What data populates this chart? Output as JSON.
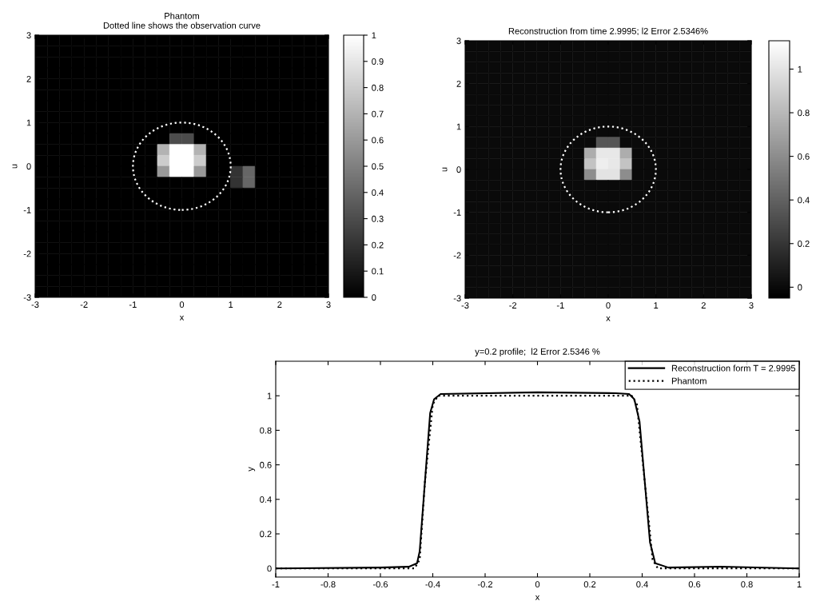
{
  "chart_data": [
    {
      "type": "heatmap",
      "title": "Phantom",
      "subtitle": "Dotted line shows the observation curve",
      "xlabel": "x",
      "ylabel": "u",
      "xlim": [
        -3,
        3
      ],
      "ylim": [
        -3,
        3
      ],
      "xticks": [
        -3,
        -2,
        -1,
        0,
        1,
        2,
        3
      ],
      "yticks": [
        -3,
        -2,
        -1,
        0,
        1,
        2,
        3
      ],
      "clim": [
        0,
        1
      ],
      "cticks": [
        0,
        0.1,
        0.2,
        0.3,
        0.4,
        0.5,
        0.6,
        0.7,
        0.8,
        0.9,
        1
      ],
      "cells": [
        [
          0,
          0,
          0,
          0,
          0,
          0,
          0,
          0,
          0,
          0,
          0,
          0,
          0,
          0,
          0,
          0,
          0,
          0,
          0,
          0,
          0,
          0,
          0,
          0
        ],
        [
          0,
          0,
          0,
          0,
          0,
          0,
          0,
          0,
          0,
          0,
          0,
          0,
          0,
          0,
          0,
          0,
          0,
          0,
          0,
          0,
          0,
          0,
          0,
          0
        ],
        [
          0,
          0,
          0,
          0,
          0,
          0,
          0,
          0,
          0,
          0,
          0,
          0,
          0,
          0,
          0,
          0,
          0,
          0,
          0,
          0,
          0,
          0,
          0,
          0
        ],
        [
          0,
          0,
          0,
          0,
          0,
          0,
          0,
          0,
          0,
          0,
          0,
          0,
          0,
          0,
          0,
          0,
          0,
          0,
          0,
          0,
          0,
          0,
          0,
          0
        ],
        [
          0,
          0,
          0,
          0,
          0,
          0,
          0,
          0,
          0,
          0,
          0,
          0,
          0,
          0,
          0,
          0,
          0,
          0,
          0,
          0,
          0,
          0,
          0,
          0
        ],
        [
          0,
          0,
          0,
          0,
          0,
          0,
          0,
          0,
          0,
          0,
          0,
          0,
          0,
          0,
          0,
          0,
          0,
          0,
          0,
          0,
          0,
          0,
          0,
          0
        ],
        [
          0,
          0,
          0,
          0,
          0,
          0,
          0,
          0,
          0,
          0,
          0,
          0,
          0,
          0,
          0,
          0,
          0,
          0,
          0,
          0,
          0,
          0,
          0,
          0
        ],
        [
          0,
          0,
          0,
          0,
          0,
          0,
          0,
          0,
          0,
          0,
          0,
          0,
          0,
          0,
          0,
          0,
          0,
          0,
          0,
          0,
          0,
          0,
          0,
          0
        ],
        [
          0,
          0,
          0,
          0,
          0,
          0,
          0,
          0,
          0,
          0,
          0,
          0,
          0,
          0,
          0,
          0,
          0,
          0,
          0,
          0,
          0,
          0,
          0,
          0
        ],
        [
          0,
          0,
          0,
          0,
          0,
          0,
          0,
          0,
          0,
          0,
          0,
          0.3,
          0.3,
          0,
          0,
          0,
          0,
          0,
          0,
          0,
          0,
          0,
          0,
          0
        ],
        [
          0,
          0,
          0,
          0,
          0,
          0,
          0,
          0,
          0,
          0,
          0.7,
          1,
          1,
          0.7,
          0,
          0,
          0,
          0,
          0,
          0,
          0,
          0,
          0,
          0
        ],
        [
          0,
          0,
          0,
          0,
          0,
          0,
          0,
          0,
          0,
          0,
          0.8,
          1,
          1,
          0.8,
          0,
          0,
          0,
          0,
          0,
          0,
          0,
          0,
          0,
          0
        ],
        [
          0,
          0,
          0,
          0,
          0,
          0,
          0,
          0,
          0,
          0,
          0.6,
          1,
          1,
          0.6,
          0,
          0,
          0.2,
          0.4,
          0,
          0,
          0,
          0,
          0,
          0
        ],
        [
          0,
          0,
          0,
          0,
          0,
          0,
          0,
          0,
          0,
          0,
          0,
          0,
          0,
          0,
          0,
          0,
          0.2,
          0.4,
          0,
          0,
          0,
          0,
          0,
          0
        ],
        [
          0,
          0,
          0,
          0,
          0,
          0,
          0,
          0,
          0,
          0,
          0,
          0,
          0,
          0,
          0,
          0,
          0,
          0,
          0,
          0,
          0,
          0,
          0,
          0
        ],
        [
          0,
          0,
          0,
          0,
          0,
          0,
          0,
          0,
          0,
          0,
          0,
          0,
          0,
          0,
          0,
          0,
          0,
          0,
          0,
          0,
          0,
          0,
          0,
          0
        ],
        [
          0,
          0,
          0,
          0,
          0,
          0,
          0,
          0,
          0,
          0,
          0,
          0,
          0,
          0,
          0,
          0,
          0,
          0,
          0,
          0,
          0,
          0,
          0,
          0
        ],
        [
          0,
          0,
          0,
          0,
          0,
          0,
          0,
          0,
          0,
          0,
          0,
          0,
          0,
          0,
          0,
          0,
          0,
          0,
          0,
          0,
          0,
          0,
          0,
          0
        ],
        [
          0,
          0,
          0,
          0,
          0,
          0,
          0,
          0,
          0,
          0,
          0,
          0,
          0,
          0,
          0,
          0,
          0,
          0,
          0,
          0,
          0,
          0,
          0,
          0
        ],
        [
          0,
          0,
          0,
          0,
          0,
          0,
          0,
          0,
          0,
          0,
          0,
          0,
          0,
          0,
          0,
          0,
          0,
          0,
          0,
          0,
          0,
          0,
          0,
          0
        ],
        [
          0,
          0,
          0,
          0,
          0,
          0,
          0,
          0,
          0,
          0,
          0,
          0,
          0,
          0,
          0,
          0,
          0,
          0,
          0,
          0,
          0,
          0,
          0,
          0
        ],
        [
          0,
          0,
          0,
          0,
          0,
          0,
          0,
          0,
          0,
          0,
          0,
          0,
          0,
          0,
          0,
          0,
          0,
          0,
          0,
          0,
          0,
          0,
          0,
          0
        ],
        [
          0,
          0,
          0,
          0,
          0,
          0,
          0,
          0,
          0,
          0,
          0,
          0,
          0,
          0,
          0,
          0,
          0,
          0,
          0,
          0,
          0,
          0,
          0,
          0
        ],
        [
          0,
          0,
          0,
          0,
          0,
          0,
          0,
          0,
          0,
          0,
          0,
          0,
          0,
          0,
          0,
          0,
          0,
          0,
          0,
          0,
          0,
          0,
          0,
          0
        ]
      ]
    },
    {
      "type": "heatmap",
      "title": "Reconstruction from time 2.9995; l2 Error 2.5346%",
      "xlabel": "x",
      "ylabel": "u",
      "xlim": [
        -3,
        3
      ],
      "ylim": [
        -3,
        3
      ],
      "xticks": [
        -3,
        -2,
        -1,
        0,
        1,
        2,
        3
      ],
      "yticks": [
        -3,
        -2,
        -1,
        0,
        1,
        2,
        3
      ],
      "clim": [
        -0.05,
        1.13
      ],
      "cticks": [
        0,
        0.2,
        0.4,
        0.6,
        0.8,
        1
      ],
      "cells": [
        [
          0,
          0,
          0,
          0,
          0,
          0,
          0,
          0,
          0,
          0,
          0,
          0,
          0,
          0,
          0,
          0,
          0,
          0,
          0,
          0,
          0,
          0,
          0,
          0
        ],
        [
          0,
          0,
          0,
          0,
          0,
          0,
          0,
          0,
          0,
          0,
          0,
          0,
          0,
          0,
          0,
          0,
          0,
          0,
          0,
          0,
          0,
          0,
          0,
          0
        ],
        [
          0,
          0,
          0,
          0,
          0,
          0,
          0,
          0,
          0,
          0,
          0,
          0,
          0,
          0,
          0,
          0,
          0,
          0,
          0,
          0,
          0,
          0,
          0,
          0
        ],
        [
          0,
          0,
          0,
          0,
          0,
          0,
          0,
          0,
          0,
          0,
          0,
          0,
          0,
          0,
          0,
          0,
          0,
          0,
          0,
          0,
          0,
          0,
          0,
          0
        ],
        [
          0,
          0,
          0,
          0,
          0,
          0,
          0,
          0,
          0,
          0,
          0,
          0,
          0,
          0,
          0,
          0,
          0,
          0,
          0,
          0,
          0,
          0,
          0,
          0
        ],
        [
          0,
          0,
          0,
          0,
          0,
          0,
          0,
          0,
          0,
          0,
          0,
          0,
          0,
          0,
          0,
          0,
          0,
          0,
          0,
          0,
          0,
          0,
          0,
          0
        ],
        [
          0,
          0,
          0,
          0,
          0,
          0,
          0,
          0,
          0,
          0,
          0,
          0,
          0,
          0,
          0,
          0,
          0,
          0,
          0,
          0,
          0,
          0,
          0,
          0
        ],
        [
          0,
          0,
          0,
          0,
          0,
          0,
          0,
          0,
          0,
          0,
          0,
          0,
          0,
          0,
          0,
          0,
          0,
          0,
          0,
          0,
          0,
          0,
          0,
          0
        ],
        [
          0,
          0,
          0,
          0,
          0,
          0,
          0,
          0,
          0,
          0,
          0,
          0,
          0,
          0,
          0,
          0,
          0,
          0,
          0,
          0,
          0,
          0,
          0,
          0
        ],
        [
          0,
          0,
          0,
          0,
          0,
          0,
          0,
          0,
          0,
          0,
          0,
          0.35,
          0.35,
          0,
          0,
          0,
          0,
          0,
          0,
          0,
          0,
          0,
          0,
          0
        ],
        [
          0,
          0,
          0,
          0,
          0,
          0,
          0,
          0,
          0,
          0,
          0.75,
          1.02,
          1.02,
          0.75,
          0,
          0,
          0,
          0,
          0,
          0,
          0,
          0,
          0,
          0
        ],
        [
          0,
          0,
          0,
          0,
          0,
          0,
          0,
          0,
          0,
          0,
          0.85,
          1.05,
          1.02,
          0.85,
          0,
          0,
          0,
          0,
          0,
          0,
          0,
          0,
          0,
          0
        ],
        [
          0,
          0,
          0,
          0,
          0,
          0,
          0,
          0,
          0,
          0,
          0.6,
          1,
          1,
          0.6,
          0,
          0,
          0,
          0,
          0,
          0,
          0,
          0,
          0,
          0
        ],
        [
          0,
          0,
          0,
          0,
          0,
          0,
          0,
          0,
          0,
          0,
          0,
          0,
          0,
          0,
          0,
          0,
          0,
          0,
          0,
          0,
          0,
          0,
          0,
          0
        ],
        [
          0,
          0,
          0,
          0,
          0,
          0,
          0,
          0,
          0,
          0,
          0,
          0,
          0,
          0,
          0,
          0,
          0,
          0,
          0,
          0,
          0,
          0,
          0,
          0
        ],
        [
          0,
          0,
          0,
          0,
          0,
          0,
          0,
          0,
          0,
          0,
          0,
          0,
          0,
          0,
          0,
          0,
          0,
          0,
          0,
          0,
          0,
          0,
          0,
          0
        ],
        [
          0,
          0,
          0,
          0,
          0,
          0,
          0,
          0,
          0,
          0,
          0,
          0,
          0,
          0,
          0,
          0,
          0,
          0,
          0,
          0,
          0,
          0,
          0,
          0
        ],
        [
          0,
          0,
          0,
          0,
          0,
          0,
          0,
          0,
          0,
          0,
          0,
          0,
          0,
          0,
          0,
          0,
          0,
          0,
          0,
          0,
          0,
          0,
          0,
          0
        ],
        [
          0,
          0,
          0,
          0,
          0,
          0,
          0,
          0,
          0,
          0,
          0,
          0,
          0,
          0,
          0,
          0,
          0,
          0,
          0,
          0,
          0,
          0,
          0,
          0
        ],
        [
          0,
          0,
          0,
          0,
          0,
          0,
          0,
          0,
          0,
          0,
          0,
          0,
          0,
          0,
          0,
          0,
          0,
          0,
          0,
          0,
          0,
          0,
          0,
          0
        ],
        [
          0,
          0,
          0,
          0,
          0,
          0,
          0,
          0,
          0,
          0,
          0,
          0,
          0,
          0,
          0,
          0,
          0,
          0,
          0,
          0,
          0,
          0,
          0,
          0
        ],
        [
          0,
          0,
          0,
          0,
          0,
          0,
          0,
          0,
          0,
          0,
          0,
          0,
          0,
          0,
          0,
          0,
          0,
          0,
          0,
          0,
          0,
          0,
          0,
          0
        ],
        [
          0,
          0,
          0,
          0,
          0,
          0,
          0,
          0,
          0,
          0,
          0,
          0,
          0,
          0,
          0,
          0,
          0,
          0,
          0,
          0,
          0,
          0,
          0,
          0
        ],
        [
          0,
          0,
          0,
          0,
          0,
          0,
          0,
          0,
          0,
          0,
          0,
          0,
          0,
          0,
          0,
          0,
          0,
          0,
          0,
          0,
          0,
          0,
          0,
          0
        ]
      ]
    },
    {
      "type": "line",
      "title": "y=0.2 profile;  l2 Error 2.5346 %",
      "xlabel": "x",
      "ylabel": "y",
      "xlim": [
        -1,
        1
      ],
      "ylim": [
        -0.05,
        1.2
      ],
      "xticks": [
        -1,
        -0.8,
        -0.6,
        -0.4,
        -0.2,
        0,
        0.2,
        0.4,
        0.6,
        0.8,
        1
      ],
      "yticks": [
        0,
        0.2,
        0.4,
        0.6,
        0.8,
        1
      ],
      "legend": "top right",
      "grid": false,
      "series": [
        {
          "name": "Reconstruction form T = 2.9995",
          "color": "#000000",
          "line_style": "solid",
          "x": [
            -1,
            -0.6,
            -0.49,
            -0.46,
            -0.45,
            -0.43,
            -0.41,
            -0.395,
            -0.37,
            0,
            0.3,
            0.35,
            0.37,
            0.39,
            0.41,
            0.43,
            0.45,
            0.5,
            0.7,
            1
          ],
          "values": [
            0,
            0.005,
            0.01,
            0.03,
            0.1,
            0.5,
            0.9,
            0.98,
            1.01,
            1.02,
            1.015,
            1.01,
            0.98,
            0.85,
            0.5,
            0.15,
            0.03,
            0.005,
            0.01,
            0
          ]
        },
        {
          "name": "Phantom",
          "color": "#000000",
          "line_style": "dotted",
          "x": [
            -1,
            -0.47,
            -0.45,
            -0.43,
            -0.4,
            -0.38,
            0.36,
            0.38,
            0.41,
            0.44,
            0.46,
            1
          ],
          "values": [
            0,
            0,
            0.05,
            0.5,
            0.95,
            1,
            1,
            0.95,
            0.5,
            0.05,
            0,
            0
          ]
        }
      ]
    }
  ]
}
